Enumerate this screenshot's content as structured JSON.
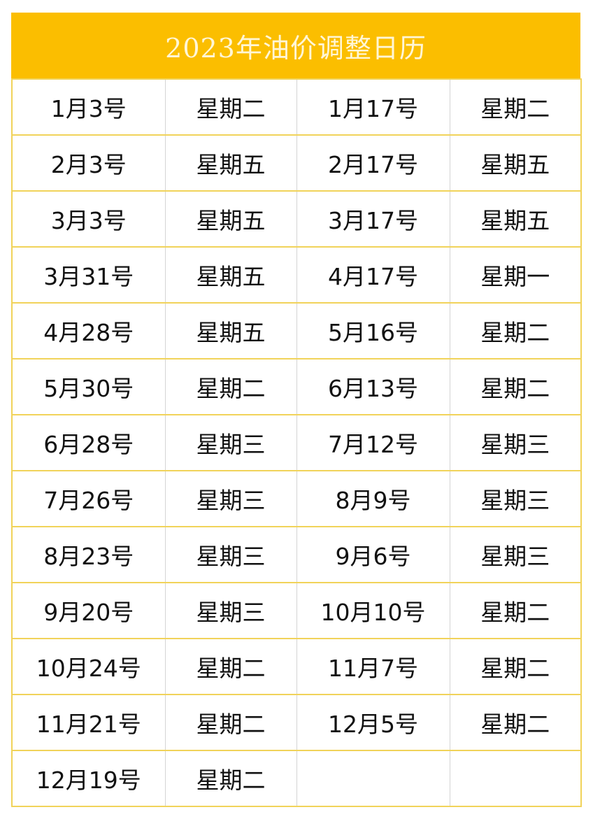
{
  "title": "2023年油价调整日历",
  "colors": {
    "header_bg": "#fbbe00",
    "title_text": "#fff6d6",
    "row_border": "#f1d35a",
    "col_border": "#d4d4d4"
  },
  "rows": [
    [
      "1月3号",
      "星期二",
      "1月17号",
      "星期二"
    ],
    [
      "2月3号",
      "星期五",
      "2月17号",
      "星期五"
    ],
    [
      "3月3号",
      "星期五",
      "3月17号",
      "星期五"
    ],
    [
      "3月31号",
      "星期五",
      "4月17号",
      "星期一"
    ],
    [
      "4月28号",
      "星期五",
      "5月16号",
      "星期二"
    ],
    [
      "5月30号",
      "星期二",
      "6月13号",
      "星期二"
    ],
    [
      "6月28号",
      "星期三",
      "7月12号",
      "星期三"
    ],
    [
      "7月26号",
      "星期三",
      "8月9号",
      "星期三"
    ],
    [
      "8月23号",
      "星期三",
      "9月6号",
      "星期三"
    ],
    [
      "9月20号",
      "星期三",
      "10月10号",
      "星期二"
    ],
    [
      "10月24号",
      "星期二",
      "11月7号",
      "星期二"
    ],
    [
      "11月21号",
      "星期二",
      "12月5号",
      "星期二"
    ],
    [
      "12月19号",
      "星期二",
      "",
      ""
    ]
  ]
}
